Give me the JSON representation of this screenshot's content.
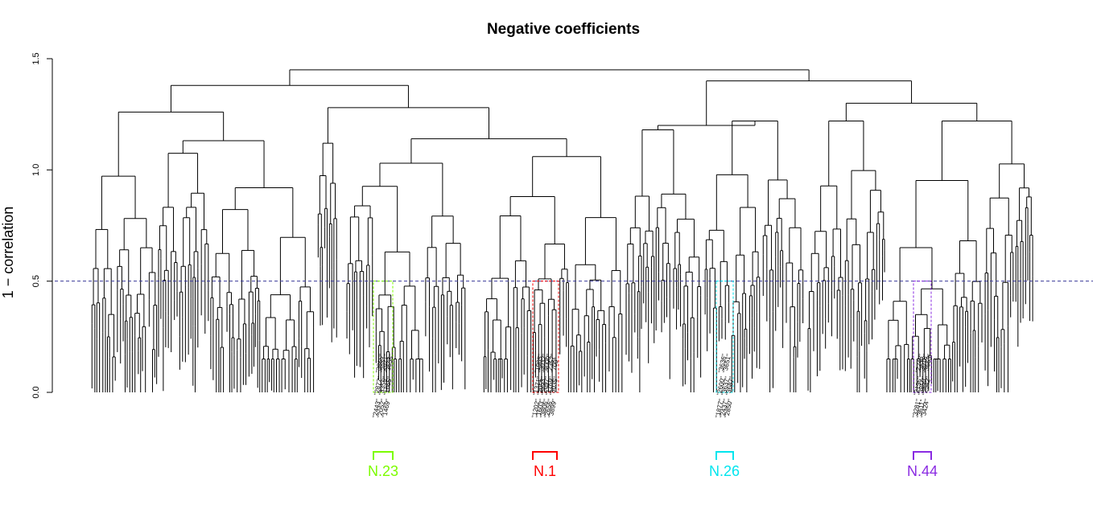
{
  "chart_data": {
    "type": "dendrogram",
    "title": "Negative coefficients",
    "xlabel": "",
    "ylabel": "1 − correlation",
    "ylim": [
      0,
      1.5
    ],
    "yticks": [
      "0.0",
      "0.5",
      "1.0",
      "1.5"
    ],
    "cut_height": 0.5,
    "cut_line_color": "#3a3a9a",
    "tree": {
      "root_height": 1.45,
      "top_merges": [
        {
          "height": 1.45,
          "children": [
            "left_half",
            "right_half"
          ]
        },
        {
          "height": 1.38,
          "name": "left_half",
          "children": [
            "A",
            "BCD"
          ]
        },
        {
          "height": 1.4,
          "name": "right_half",
          "children": [
            "E",
            "F"
          ]
        },
        {
          "height": 1.26,
          "name": "A",
          "children": [
            "A1",
            "A2"
          ]
        },
        {
          "height": 1.29,
          "name": "BCD",
          "children": [
            "B",
            "CD"
          ]
        },
        {
          "height": 1.12,
          "name": "E",
          "children": [
            "E1",
            "E2"
          ]
        },
        {
          "height": 1.3,
          "name": "F",
          "children": [
            "F1",
            "F2"
          ]
        },
        {
          "height": 1.17,
          "name": "CD",
          "children": [
            "C",
            "D"
          ]
        }
      ]
    },
    "clusters": [
      {
        "name": "N.23",
        "color": "#7cfc00",
        "cut_height": 0.5,
        "leaf_labels": [
          "\"2443\"",
          "\"2877\"",
          "\"3865\"",
          "\"2052\"",
          "\"3356\"",
          "\"2821\"",
          "\"1469\"",
          "\"1665\"",
          "\"3656\""
        ]
      },
      {
        "name": "N.1",
        "color": "#ff0000",
        "cut_height": 0.5,
        "leaf_labels": [
          "\"1202\"",
          "\"1371\"",
          "\"1985\"",
          "\"1603\"",
          "\"2053\"",
          "\"3032\"",
          "\"3806\"",
          "\"2697\"",
          "\"4000\"",
          "\"2656\"",
          "\"1769\"",
          "\"2357\"",
          "\"3899\"",
          "\"3035\"",
          "\"709\""
        ]
      },
      {
        "name": "N.26",
        "color": "#00e5ee",
        "cut_height": 0.5,
        "leaf_labels": [
          "\"1877\"",
          "\"2600\"",
          "\"3636\"",
          "\"2437\"",
          "\"3637\"",
          "\"3651\"",
          "\"2850\"",
          "\"3687\""
        ]
      },
      {
        "name": "N.44",
        "color": "#8a2be2",
        "cut_height": 0.5,
        "leaf_labels": [
          "\"3281\"",
          "\"2196\"",
          "\"2248\"",
          "\"3611\"",
          "\"3850\"",
          "\"3078\"",
          "\"3424\"",
          "\"2542\"",
          "\"3663\""
        ]
      }
    ]
  }
}
